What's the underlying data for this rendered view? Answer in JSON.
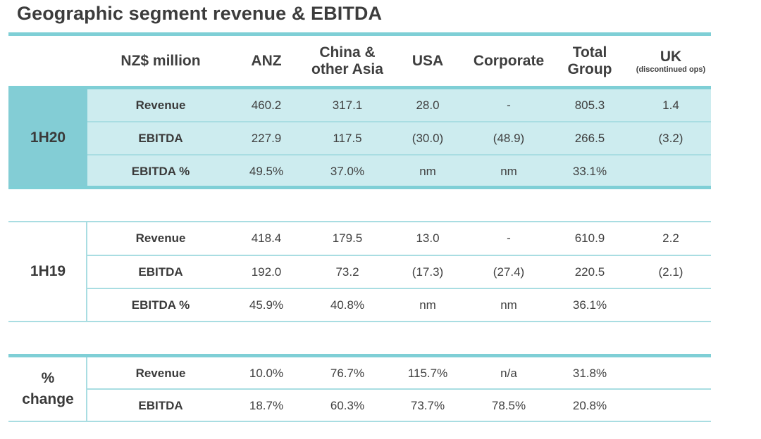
{
  "title": "Geographic segment revenue & EBITDA",
  "header": {
    "unit": "NZ$ million",
    "columns": [
      "ANZ",
      "China &\nother Asia",
      "USA",
      "Corporate",
      "Total\nGroup",
      "UK"
    ],
    "uk_note": "(discontinued ops)"
  },
  "sections": [
    {
      "period": "1H20",
      "rows": [
        {
          "label": "Revenue",
          "values": [
            "460.2",
            "317.1",
            "28.0",
            "-",
            "805.3",
            "1.4"
          ]
        },
        {
          "label": "EBITDA",
          "values": [
            "227.9",
            "117.5",
            "(30.0)",
            "(48.9)",
            "266.5",
            "(3.2)"
          ]
        },
        {
          "label": "EBITDA %",
          "values": [
            "49.5%",
            "37.0%",
            "nm",
            "nm",
            "33.1%",
            ""
          ]
        }
      ]
    },
    {
      "period": "1H19",
      "rows": [
        {
          "label": "Revenue",
          "values": [
            "418.4",
            "179.5",
            "13.0",
            "-",
            "610.9",
            "2.2"
          ]
        },
        {
          "label": "EBITDA",
          "values": [
            "192.0",
            "73.2",
            "(17.3)",
            "(27.4)",
            "220.5",
            "(2.1)"
          ]
        },
        {
          "label": "EBITDA %",
          "values": [
            "45.9%",
            "40.8%",
            "nm",
            "nm",
            "36.1%",
            ""
          ]
        }
      ]
    },
    {
      "period": "%\nchange",
      "rows": [
        {
          "label": "Revenue",
          "values": [
            "10.0%",
            "76.7%",
            "115.7%",
            "n/a",
            "31.8%",
            ""
          ]
        },
        {
          "label": "EBITDA",
          "values": [
            "18.7%",
            "60.3%",
            "73.7%",
            "78.5%",
            "20.8%",
            ""
          ]
        }
      ]
    }
  ],
  "colors": {
    "accent": "#7fcfd6",
    "band_light": "#cdecef",
    "band_dark": "#83cdd5",
    "text": "#404040"
  }
}
